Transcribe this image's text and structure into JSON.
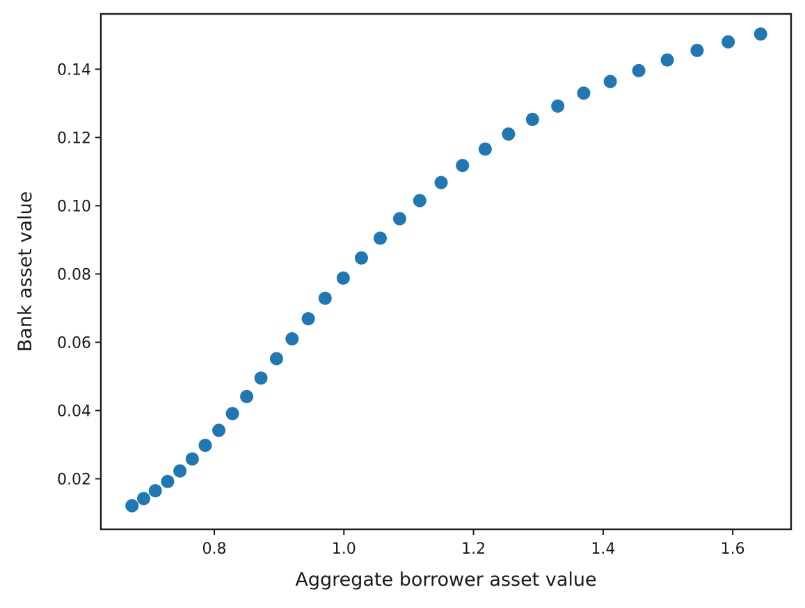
{
  "chart_data": {
    "type": "scatter",
    "title": "",
    "xlabel": "Aggregate borrower asset value",
    "ylabel": "Bank asset value",
    "xlim": [
      0.625,
      1.69
    ],
    "ylim": [
      0.0052,
      0.1562
    ],
    "xticks": [
      0.8,
      1.0,
      1.2,
      1.4,
      1.6
    ],
    "xtick_labels": [
      "0.8",
      "1.0",
      "1.2",
      "1.4",
      "1.6"
    ],
    "yticks": [
      0.02,
      0.04,
      0.06,
      0.08,
      0.1,
      0.12,
      0.14
    ],
    "ytick_labels": [
      "0.02",
      "0.04",
      "0.06",
      "0.08",
      "0.10",
      "0.12",
      "0.14"
    ],
    "grid": false,
    "legend": "none",
    "marker_color": "#1f77b4",
    "series": [
      {
        "x": [
          0.673,
          0.691,
          0.709,
          0.728,
          0.747,
          0.766,
          0.786,
          0.807,
          0.828,
          0.85,
          0.872,
          0.896,
          0.92,
          0.945,
          0.971,
          0.999,
          1.027,
          1.056,
          1.086,
          1.117,
          1.15,
          1.183,
          1.218,
          1.254,
          1.291,
          1.33,
          1.37,
          1.411,
          1.455,
          1.499,
          1.545,
          1.593,
          1.643
        ],
        "y": [
          0.0121,
          0.0142,
          0.0165,
          0.0192,
          0.0223,
          0.0258,
          0.0298,
          0.0342,
          0.0391,
          0.0441,
          0.0495,
          0.0552,
          0.061,
          0.0669,
          0.0729,
          0.0788,
          0.0847,
          0.0905,
          0.0962,
          0.1015,
          0.1068,
          0.1118,
          0.1166,
          0.121,
          0.1253,
          0.1292,
          0.133,
          0.1364,
          0.1396,
          0.1427,
          0.1455,
          0.148,
          0.1503
        ]
      }
    ]
  }
}
